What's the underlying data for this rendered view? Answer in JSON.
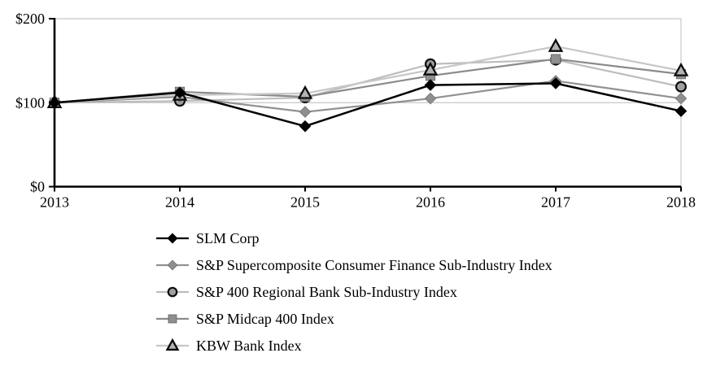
{
  "chart_data": {
    "type": "line",
    "title": "",
    "xlabel": "",
    "ylabel": "",
    "x_tick_labels": [
      "2013",
      "2014",
      "2015",
      "2016",
      "2017",
      "2018"
    ],
    "y_ticks": [
      0,
      100,
      200
    ],
    "y_tick_labels": [
      "$0",
      "$100",
      "$200"
    ],
    "ylim": [
      0,
      200
    ],
    "grid": "horizontal gridlines at 100 and 200, light gray, with light gray right border",
    "legend_position": "below-left",
    "series": [
      {
        "name": "SLM Corp",
        "values": [
          100,
          112,
          72,
          121,
          123,
          90
        ],
        "line_color": "#000000",
        "marker": "diamond",
        "marker_fill": "#000000",
        "marker_stroke": "#000000"
      },
      {
        "name": "S&P Supercomposite Consumer Finance Sub-Industry Index",
        "values": [
          100,
          107,
          89,
          105,
          126,
          105
        ],
        "line_color": "#919191",
        "marker": "diamond",
        "marker_fill": "#8f8f8f",
        "marker_stroke": "#7a7a7a"
      },
      {
        "name": "S&P 400 Regional Bank Sub-Industry Index",
        "values": [
          100,
          102,
          106,
          146,
          151,
          119
        ],
        "line_color": "#bdbdbd",
        "marker": "circle",
        "marker_fill": "#a0a0a0",
        "marker_stroke": "#0d0d0d"
      },
      {
        "name": "S&P Midcap 400 Index",
        "values": [
          100,
          113,
          107,
          132,
          152,
          134
        ],
        "line_color": "#8a8a8a",
        "marker": "square",
        "marker_fill": "#8f8f8f",
        "marker_stroke": "#6f6f6f"
      },
      {
        "name": "KBW Bank Index",
        "values": [
          100,
          109,
          111,
          139,
          167,
          138
        ],
        "line_color": "#c7c7c7",
        "marker": "triangle",
        "marker_fill": "#b3b3b3",
        "marker_stroke": "#0d0d0d"
      }
    ],
    "colors": {
      "axis": "#000000",
      "gridline": "#c8c8c8",
      "text": "#000000",
      "background": "#ffffff"
    }
  }
}
